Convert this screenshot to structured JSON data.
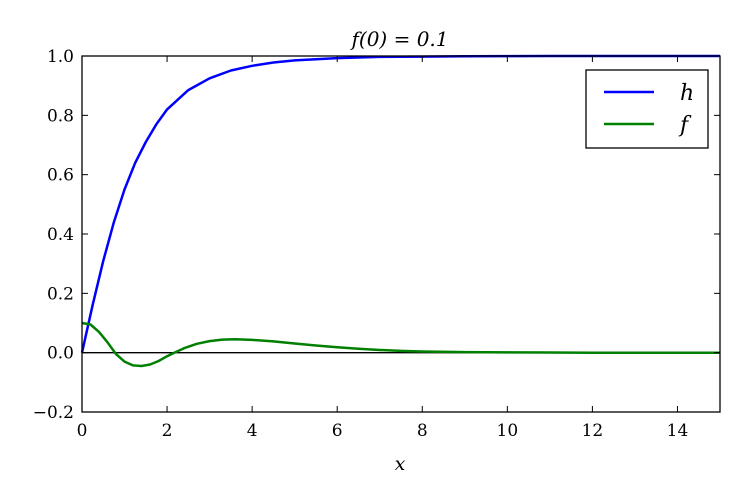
{
  "chart_data": {
    "type": "line",
    "title": "f(0) = 0.1",
    "xlabel": "x",
    "ylabel": "",
    "xlim": [
      0,
      15
    ],
    "ylim": [
      -0.2,
      1.0
    ],
    "x_ticks": [
      0,
      2,
      4,
      6,
      8,
      10,
      12,
      14
    ],
    "x_tick_labels": [
      "0",
      "2",
      "4",
      "6",
      "8",
      "10",
      "12",
      "14"
    ],
    "y_ticks": [
      -0.2,
      0.0,
      0.2,
      0.4,
      0.6,
      0.8,
      1.0
    ],
    "y_tick_labels": [
      "−0.2",
      "0.0",
      "0.2",
      "0.4",
      "0.6",
      "0.8",
      "1.0"
    ],
    "grid": false,
    "legend_position": "top-right",
    "reference_line": {
      "y": 0.0,
      "color": "#000000"
    },
    "series": [
      {
        "name": "h",
        "color": "#0000ff",
        "x": [
          0,
          0.25,
          0.5,
          0.75,
          1.0,
          1.25,
          1.5,
          1.75,
          2.0,
          2.5,
          3.0,
          3.5,
          4.0,
          4.5,
          5.0,
          6.0,
          7.0,
          8.0,
          9.0,
          10.0,
          11.0,
          12.0,
          13.0,
          14.0,
          15.0
        ],
        "values": [
          0.0,
          0.16,
          0.31,
          0.44,
          0.55,
          0.64,
          0.71,
          0.77,
          0.82,
          0.885,
          0.925,
          0.951,
          0.967,
          0.978,
          0.985,
          0.993,
          0.997,
          0.998,
          0.999,
          0.9995,
          1.0,
          1.0,
          1.0,
          1.0,
          1.0
        ]
      },
      {
        "name": "f",
        "color": "#008000",
        "x": [
          0,
          0.2,
          0.4,
          0.6,
          0.8,
          1.0,
          1.2,
          1.4,
          1.6,
          1.8,
          2.0,
          2.2,
          2.4,
          2.7,
          3.0,
          3.3,
          3.6,
          4.0,
          4.5,
          5.0,
          5.5,
          6.0,
          6.5,
          7.0,
          7.5,
          8.0,
          9.0,
          10.0,
          11.0,
          12.0,
          13.0,
          14.0,
          15.0
        ],
        "values": [
          0.1,
          0.095,
          0.07,
          0.035,
          -0.005,
          -0.03,
          -0.043,
          -0.045,
          -0.04,
          -0.028,
          -0.012,
          0.002,
          0.015,
          0.03,
          0.039,
          0.044,
          0.045,
          0.043,
          0.038,
          0.031,
          0.024,
          0.018,
          0.013,
          0.009,
          0.006,
          0.004,
          0.002,
          0.001,
          0.0005,
          0.0,
          0.0,
          0.0,
          0.0
        ]
      }
    ]
  }
}
